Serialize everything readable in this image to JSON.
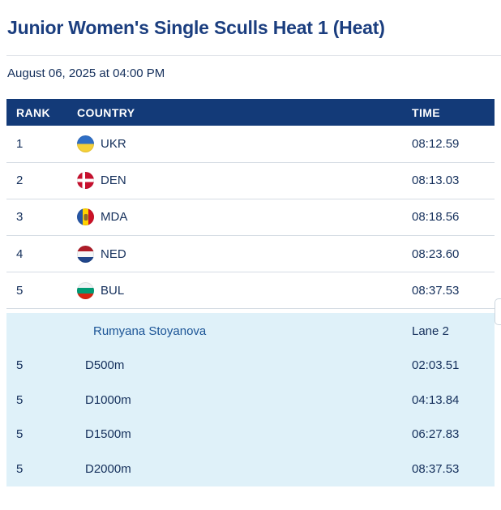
{
  "header": {
    "title": "Junior Women's Single Sculls Heat 1 (Heat)",
    "datetime": "August 06, 2025 at 04:00 PM"
  },
  "colors": {
    "brand_navy": "#133A78",
    "title_navy": "#1B3E7F",
    "text_navy": "#142F5B",
    "detail_bg": "#DFF1F9",
    "name_blue": "#1B5496",
    "divider": "#E2E5EA",
    "row_border": "#D5DCE4"
  },
  "table": {
    "columns": {
      "rank": "RANK",
      "country": "COUNTRY",
      "time": "TIME"
    },
    "rows": [
      {
        "rank": "1",
        "country": "UKR",
        "time": "08:12.59",
        "flag": {
          "icon": "flag-ukr-icon",
          "type": "h",
          "colors": [
            "#2F6EC5",
            "#F5D038"
          ]
        }
      },
      {
        "rank": "2",
        "country": "DEN",
        "time": "08:13.03",
        "flag": {
          "icon": "flag-den-icon",
          "type": "cross",
          "bg": "#C8102E",
          "cross": "#FFFFFF"
        }
      },
      {
        "rank": "3",
        "country": "MDA",
        "time": "08:18.56",
        "flag": {
          "icon": "flag-mda-icon",
          "type": "v",
          "colors": [
            "#2656A5",
            "#FFD200",
            "#CC1126"
          ],
          "emblem": "#7A5C33"
        }
      },
      {
        "rank": "4",
        "country": "NED",
        "time": "08:23.60",
        "flag": {
          "icon": "flag-ned-icon",
          "type": "h",
          "colors": [
            "#AE1C28",
            "#F5F7F8",
            "#21468B"
          ]
        }
      },
      {
        "rank": "5",
        "country": "BUL",
        "time": "08:37.53",
        "flag": {
          "icon": "flag-bul-icon",
          "type": "h",
          "colors": [
            "#EFF2F4",
            "#009B74",
            "#D62612"
          ]
        }
      }
    ]
  },
  "detail": {
    "athlete": "Rumyana Stoyanova",
    "lane": "Lane 2",
    "splits": [
      {
        "rank": "5",
        "label": "D500m",
        "time": "02:03.51"
      },
      {
        "rank": "5",
        "label": "D1000m",
        "time": "04:13.84"
      },
      {
        "rank": "5",
        "label": "D1500m",
        "time": "06:27.83"
      },
      {
        "rank": "5",
        "label": "D2000m",
        "time": "08:37.53"
      }
    ]
  }
}
